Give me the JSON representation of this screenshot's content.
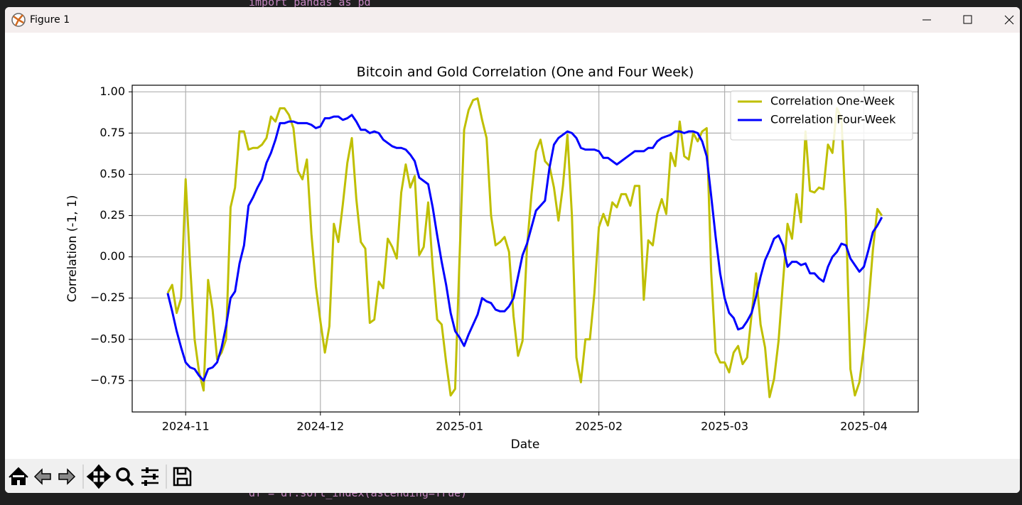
{
  "editor": {
    "lines": [
      "import pandas as pd",
      "df = df.sort_index(ascending=True)"
    ]
  },
  "window": {
    "title": "Figure 1"
  },
  "chart_data": {
    "type": "line",
    "title": "Bitcoin and Gold Correlation (One and Four Week)",
    "xlabel": "Date",
    "ylabel": "Correlation (-1, 1)",
    "x": [
      20024,
      20025,
      20026,
      20027,
      20028,
      20029,
      20030,
      20031,
      20032,
      20033,
      20034,
      20035,
      20036,
      20037,
      20038,
      20039,
      20040,
      20041,
      20042,
      20043,
      20044,
      20045,
      20046,
      20047,
      20048,
      20049,
      20050,
      20051,
      20052,
      20053,
      20054,
      20055,
      20056,
      20057,
      20058,
      20059,
      20060,
      20061,
      20062,
      20063,
      20064,
      20065,
      20066,
      20067,
      20068,
      20069,
      20070,
      20071,
      20072,
      20073,
      20074,
      20075,
      20076,
      20077,
      20078,
      20079,
      20080,
      20081,
      20082,
      20083,
      20084,
      20085,
      20086,
      20087,
      20088,
      20089,
      20090,
      20091,
      20092,
      20093,
      20094,
      20095,
      20096,
      20097,
      20098,
      20099,
      20100,
      20101,
      20102,
      20103,
      20104,
      20105,
      20106,
      20107,
      20108,
      20109,
      20110,
      20111,
      20112,
      20113,
      20114,
      20115,
      20116,
      20117,
      20118,
      20119,
      20120,
      20121,
      20122,
      20123,
      20124,
      20125,
      20126,
      20127,
      20128,
      20129,
      20130,
      20131,
      20132,
      20133,
      20134,
      20135,
      20136,
      20137,
      20138,
      20139,
      20140,
      20141,
      20142,
      20143,
      20144,
      20145,
      20146,
      20147,
      20148,
      20149,
      20150,
      20151,
      20152,
      20153,
      20154,
      20155,
      20156,
      20157,
      20158,
      20159,
      20160,
      20161,
      20162,
      20163,
      20164,
      20165,
      20166,
      20167,
      20168,
      20169,
      20170,
      20171,
      20172,
      20173,
      20174,
      20175,
      20176,
      20177,
      20178,
      20179,
      20180,
      20181,
      20182,
      20183
    ],
    "series": [
      {
        "name": "Correlation One-Week",
        "color": "#bfbf00",
        "values": [
          -0.22,
          -0.17,
          -0.34,
          -0.25,
          0.47,
          -0.05,
          -0.5,
          -0.7,
          -0.81,
          -0.14,
          -0.32,
          -0.62,
          -0.58,
          -0.5,
          0.3,
          0.42,
          0.76,
          0.76,
          0.65,
          0.66,
          0.66,
          0.68,
          0.72,
          0.85,
          0.82,
          0.9,
          0.9,
          0.86,
          0.78,
          0.52,
          0.47,
          0.59,
          0.14,
          -0.18,
          -0.39,
          -0.58,
          -0.42,
          0.2,
          0.09,
          0.32,
          0.57,
          0.72,
          0.35,
          0.09,
          0.05,
          -0.4,
          -0.38,
          -0.15,
          -0.19,
          0.11,
          0.06,
          -0.01,
          0.39,
          0.56,
          0.42,
          0.49,
          0.01,
          0.06,
          0.33,
          -0.06,
          -0.38,
          -0.41,
          -0.64,
          -0.84,
          -0.8,
          0.01,
          0.77,
          0.89,
          0.95,
          0.96,
          0.83,
          0.72,
          0.25,
          0.07,
          0.09,
          0.12,
          0.03,
          -0.36,
          -0.6,
          -0.51,
          0.06,
          0.38,
          0.64,
          0.71,
          0.58,
          0.55,
          0.42,
          0.22,
          0.43,
          0.74,
          0.25,
          -0.61,
          -0.76,
          -0.5,
          -0.5,
          -0.22,
          0.18,
          0.26,
          0.19,
          0.33,
          0.3,
          0.38,
          0.38,
          0.31,
          0.43,
          0.43,
          -0.26,
          0.1,
          0.07,
          0.26,
          0.35,
          0.26,
          0.63,
          0.55,
          0.82,
          0.61,
          0.59,
          0.75,
          0.7,
          0.76,
          0.78,
          -0.09,
          -0.58,
          -0.64,
          -0.64,
          -0.7,
          -0.58,
          -0.54,
          -0.65,
          -0.61,
          -0.35,
          -0.1,
          -0.41,
          -0.55,
          -0.85,
          -0.74,
          -0.51,
          -0.15,
          0.2,
          0.11,
          0.38,
          0.21,
          0.76,
          0.4,
          0.39,
          0.42,
          0.41,
          0.68,
          0.63,
          0.9,
          0.84,
          0.25,
          -0.68,
          -0.84,
          -0.76,
          -0.55,
          -0.3,
          0.04,
          0.29,
          0.25
        ]
      },
      {
        "name": "Correlation Four-Week",
        "color": "#0000ff",
        "values": [
          -0.22,
          -0.33,
          -0.45,
          -0.55,
          -0.64,
          -0.67,
          -0.68,
          -0.72,
          -0.75,
          -0.68,
          -0.67,
          -0.64,
          -0.55,
          -0.42,
          -0.25,
          -0.21,
          -0.04,
          0.07,
          0.31,
          0.36,
          0.42,
          0.47,
          0.57,
          0.63,
          0.71,
          0.81,
          0.81,
          0.82,
          0.82,
          0.81,
          0.81,
          0.81,
          0.8,
          0.78,
          0.79,
          0.84,
          0.84,
          0.85,
          0.85,
          0.83,
          0.84,
          0.86,
          0.82,
          0.77,
          0.77,
          0.75,
          0.76,
          0.75,
          0.71,
          0.69,
          0.67,
          0.66,
          0.66,
          0.65,
          0.62,
          0.58,
          0.48,
          0.46,
          0.44,
          0.3,
          0.13,
          -0.03,
          -0.17,
          -0.34,
          -0.45,
          -0.49,
          -0.54,
          -0.47,
          -0.41,
          -0.35,
          -0.25,
          -0.27,
          -0.28,
          -0.32,
          -0.33,
          -0.33,
          -0.3,
          -0.25,
          -0.12,
          0.01,
          0.08,
          0.18,
          0.28,
          0.31,
          0.34,
          0.54,
          0.68,
          0.72,
          0.74,
          0.76,
          0.75,
          0.72,
          0.66,
          0.65,
          0.65,
          0.65,
          0.64,
          0.6,
          0.6,
          0.58,
          0.56,
          0.58,
          0.6,
          0.62,
          0.64,
          0.64,
          0.64,
          0.66,
          0.66,
          0.7,
          0.72,
          0.73,
          0.74,
          0.76,
          0.76,
          0.75,
          0.76,
          0.76,
          0.75,
          0.7,
          0.61,
          0.37,
          0.12,
          -0.1,
          -0.25,
          -0.34,
          -0.37,
          -0.44,
          -0.43,
          -0.39,
          -0.34,
          -0.24,
          -0.12,
          -0.02,
          0.04,
          0.11,
          0.13,
          0.07,
          -0.06,
          -0.03,
          -0.03,
          -0.05,
          -0.04,
          -0.1,
          -0.1,
          -0.13,
          -0.15,
          -0.06,
          0,
          0.03,
          0.08,
          0.07,
          -0.01,
          -0.05,
          -0.09,
          -0.06,
          0.04,
          0.15,
          0.19,
          0.24
        ]
      }
    ],
    "xlim": [
      20016.1,
      20191.1
    ],
    "xticks": [
      {
        "value": 20028,
        "label": "2024-11"
      },
      {
        "value": 20058,
        "label": "2024-12"
      },
      {
        "value": 20089,
        "label": "2025-01"
      },
      {
        "value": 20120,
        "label": "2025-02"
      },
      {
        "value": 20148,
        "label": "2025-03"
      },
      {
        "value": 20179,
        "label": "2025-04"
      }
    ],
    "ylim": [
      -0.94,
      1.04
    ],
    "yticks": [
      {
        "value": -0.75,
        "label": "−0.75"
      },
      {
        "value": -0.5,
        "label": "−0.50"
      },
      {
        "value": -0.25,
        "label": "−0.25"
      },
      {
        "value": 0,
        "label": "0.00"
      },
      {
        "value": 0.25,
        "label": "0.25"
      },
      {
        "value": 0.5,
        "label": "0.50"
      },
      {
        "value": 0.75,
        "label": "0.75"
      },
      {
        "value": 1,
        "label": "1.00"
      }
    ],
    "grid": true,
    "legend": "upper right"
  }
}
